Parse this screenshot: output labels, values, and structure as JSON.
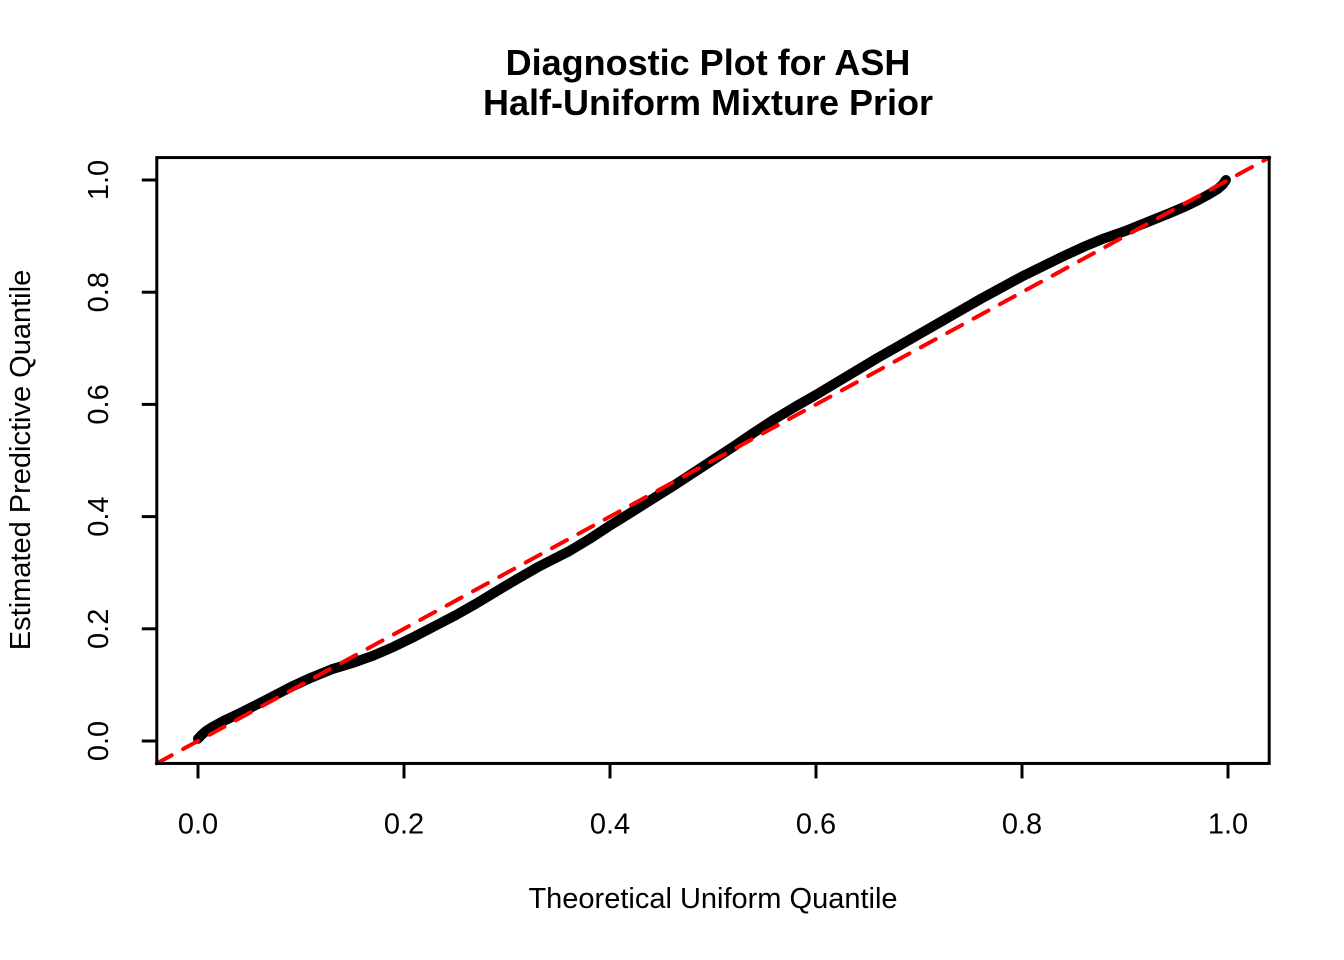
{
  "title": {
    "line1": "Diagnostic Plot for ASH",
    "line2": "Half-Uniform Mixture Prior"
  },
  "axes": {
    "x_label": "Theoretical Uniform Quantile",
    "y_label": "Estimated Predictive Quantile",
    "x_tick_labels": [
      "0.0",
      "0.2",
      "0.4",
      "0.6",
      "0.8",
      "1.0"
    ],
    "y_tick_labels": [
      "0.0",
      "0.2",
      "0.4",
      "0.6",
      "0.8",
      "1.0"
    ]
  },
  "colors": {
    "curve": "#000000",
    "reference_line": "#FF0000",
    "axis": "#000000",
    "text": "#000000",
    "background": "#FFFFFF"
  },
  "chart_data": {
    "type": "line",
    "title": "Diagnostic Plot for ASH\nHalf-Uniform Mixture Prior",
    "xlabel": "Theoretical Uniform Quantile",
    "ylabel": "Estimated Predictive Quantile",
    "xlim": [
      -0.04,
      1.04
    ],
    "ylim": [
      -0.04,
      1.04
    ],
    "x_ticks": [
      0.0,
      0.2,
      0.4,
      0.6,
      0.8,
      1.0
    ],
    "y_ticks": [
      0.0,
      0.2,
      0.4,
      0.6,
      0.8,
      1.0
    ],
    "grid": false,
    "legend": null,
    "series": [
      {
        "name": "estimated_predictive_quantiles",
        "type": "line",
        "color": "#000000",
        "line_width": 10,
        "dash": false,
        "points": [
          [
            0.0,
            0.004
          ],
          [
            0.003,
            0.01
          ],
          [
            0.008,
            0.018
          ],
          [
            0.015,
            0.026
          ],
          [
            0.025,
            0.036
          ],
          [
            0.04,
            0.049
          ],
          [
            0.055,
            0.063
          ],
          [
            0.07,
            0.077
          ],
          [
            0.09,
            0.096
          ],
          [
            0.11,
            0.113
          ],
          [
            0.13,
            0.128
          ],
          [
            0.15,
            0.139
          ],
          [
            0.17,
            0.152
          ],
          [
            0.19,
            0.168
          ],
          [
            0.21,
            0.186
          ],
          [
            0.23,
            0.205
          ],
          [
            0.25,
            0.224
          ],
          [
            0.27,
            0.245
          ],
          [
            0.29,
            0.267
          ],
          [
            0.31,
            0.289
          ],
          [
            0.33,
            0.31
          ],
          [
            0.345,
            0.324
          ],
          [
            0.36,
            0.338
          ],
          [
            0.38,
            0.36
          ],
          [
            0.4,
            0.384
          ],
          [
            0.42,
            0.407
          ],
          [
            0.44,
            0.43
          ],
          [
            0.46,
            0.453
          ],
          [
            0.48,
            0.477
          ],
          [
            0.5,
            0.501
          ],
          [
            0.52,
            0.525
          ],
          [
            0.54,
            0.55
          ],
          [
            0.56,
            0.574
          ],
          [
            0.58,
            0.596
          ],
          [
            0.6,
            0.617
          ],
          [
            0.62,
            0.639
          ],
          [
            0.64,
            0.661
          ],
          [
            0.66,
            0.683
          ],
          [
            0.68,
            0.704
          ],
          [
            0.7,
            0.725
          ],
          [
            0.72,
            0.746
          ],
          [
            0.74,
            0.767
          ],
          [
            0.76,
            0.788
          ],
          [
            0.78,
            0.808
          ],
          [
            0.8,
            0.828
          ],
          [
            0.82,
            0.846
          ],
          [
            0.84,
            0.864
          ],
          [
            0.86,
            0.881
          ],
          [
            0.88,
            0.896
          ],
          [
            0.9,
            0.909
          ],
          [
            0.915,
            0.92
          ],
          [
            0.93,
            0.931
          ],
          [
            0.945,
            0.942
          ],
          [
            0.96,
            0.954
          ],
          [
            0.972,
            0.965
          ],
          [
            0.982,
            0.975
          ],
          [
            0.99,
            0.984
          ],
          [
            0.995,
            0.992
          ],
          [
            0.998,
            1.0
          ]
        ]
      },
      {
        "name": "reference_y_equals_x",
        "type": "line",
        "color": "#FF0000",
        "line_width": 4,
        "dash": true,
        "points": [
          [
            -0.04,
            -0.04
          ],
          [
            1.04,
            1.04
          ]
        ]
      }
    ]
  }
}
